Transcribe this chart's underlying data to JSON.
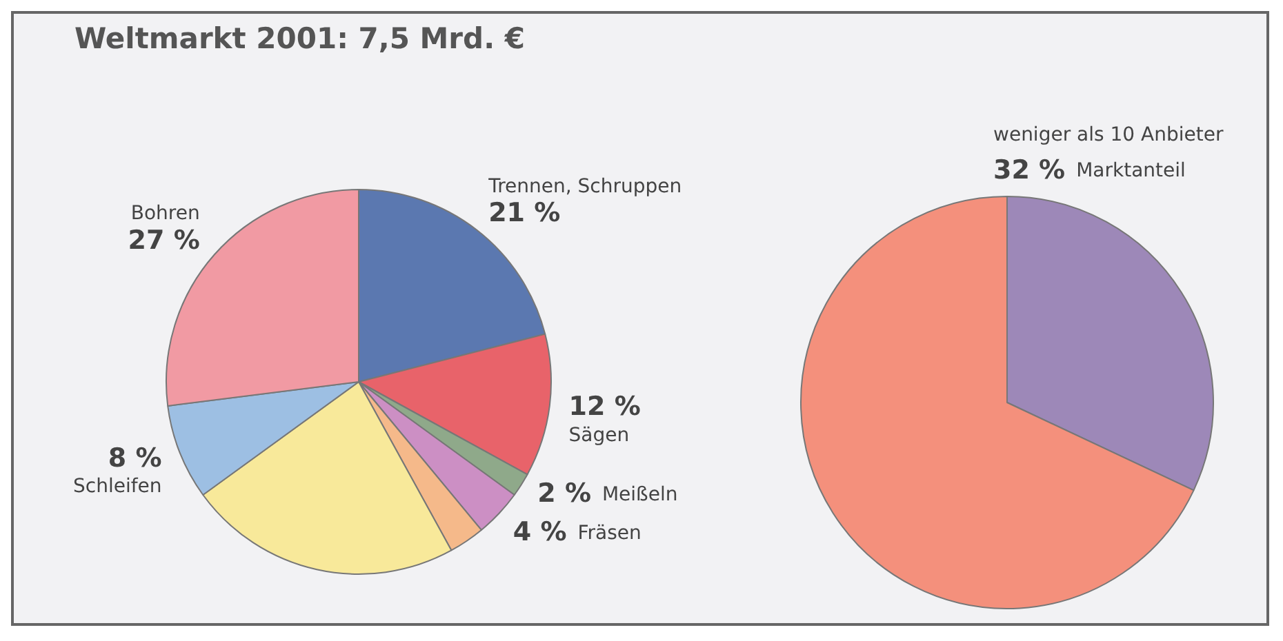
{
  "chart_data": [
    {
      "type": "pie",
      "title": "Weltmarkt 2001: 7,5 Mrd. €",
      "categories": [
        "Trennen, Schruppen",
        "Sägen",
        "Meißeln",
        "Fräsen",
        null,
        null,
        "Schleifen",
        "Bohren"
      ],
      "values": [
        21,
        12,
        2,
        4,
        3,
        23,
        8,
        27
      ],
      "value_labels": [
        "21 %",
        "12 %",
        "2 %",
        "4 %",
        null,
        null,
        "8 %",
        "27 %"
      ],
      "colors": [
        "#5b78b0",
        "#e8636a",
        "#8fa98a",
        "#cc8fc4",
        "#f5b98a",
        "#f8e99a",
        "#9dbfe3",
        "#f19aa3"
      ],
      "legend": false
    },
    {
      "type": "pie",
      "categories": [
        "weniger als 10 Anbieter",
        null
      ],
      "values": [
        32,
        68
      ],
      "value_labels": [
        "32 %",
        null
      ],
      "annotations": [
        "Marktanteil"
      ],
      "colors": [
        "#9d88b8",
        "#f4907c"
      ],
      "legend": false
    }
  ]
}
